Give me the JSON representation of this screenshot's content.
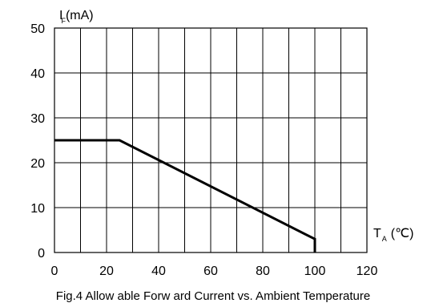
{
  "chart_data": {
    "type": "line",
    "title": "",
    "caption": "Fig.4 Allow able Forw ard Current vs. Ambient Temperature",
    "ylabel_main": "I",
    "ylabel_sub": "F",
    "ylabel_unit": "(mA)",
    "xlabel_main": "T",
    "xlabel_sub": "A",
    "xlabel_unit": "(℃)",
    "xlim": [
      0,
      120
    ],
    "ylim": [
      0,
      50
    ],
    "x_ticks": [
      0,
      20,
      40,
      60,
      80,
      100,
      120
    ],
    "y_ticks": [
      0,
      10,
      20,
      30,
      40,
      50
    ],
    "x_grid_step": 10,
    "y_grid_step": 10,
    "grid": true,
    "series": [
      {
        "x": [
          0,
          25,
          100,
          100
        ],
        "y": [
          25,
          25,
          3,
          0
        ],
        "color": "#000000"
      }
    ]
  }
}
